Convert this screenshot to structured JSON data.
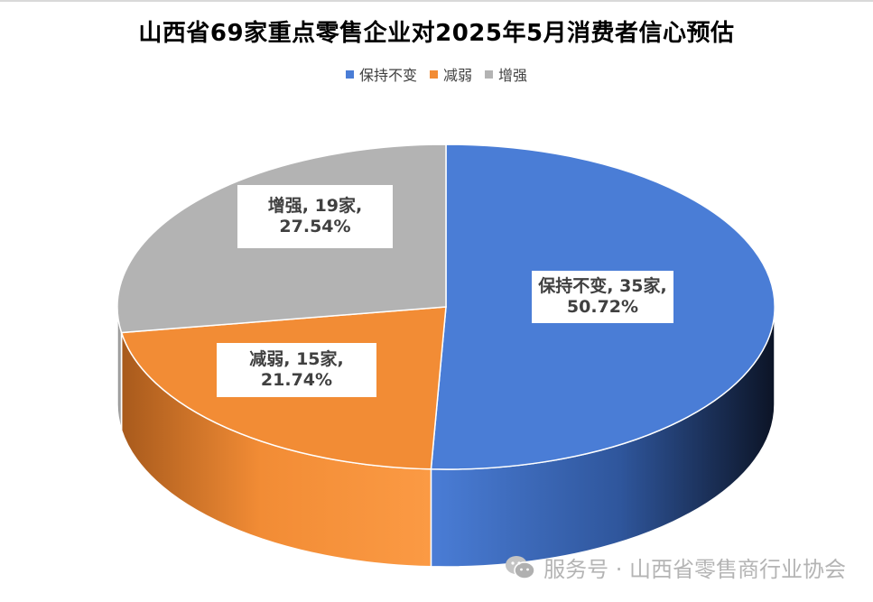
{
  "chart_data": {
    "type": "pie",
    "title": "山西省69家重点零售企业对2025年5月消费者信心预估",
    "categories": [
      "保持不变",
      "减弱",
      "增强"
    ],
    "values": [
      35,
      15,
      19
    ],
    "percentages": [
      "50.72%",
      "21.74%",
      "27.54%"
    ],
    "data_labels": [
      {
        "line1": "保持不变, 35家,",
        "line2": "50.72%"
      },
      {
        "line1": "减弱, 15家,",
        "line2": "21.74%"
      },
      {
        "line1": "增强, 19家,",
        "line2": "27.54%"
      }
    ],
    "colors": [
      "#4a7dd6",
      "#f28c35",
      "#b3b3b3"
    ],
    "legend_position": "top",
    "style": "3d"
  },
  "watermark": {
    "icon": "wechat-icon",
    "text": "服务号 · 山西省零售商行业协会"
  }
}
